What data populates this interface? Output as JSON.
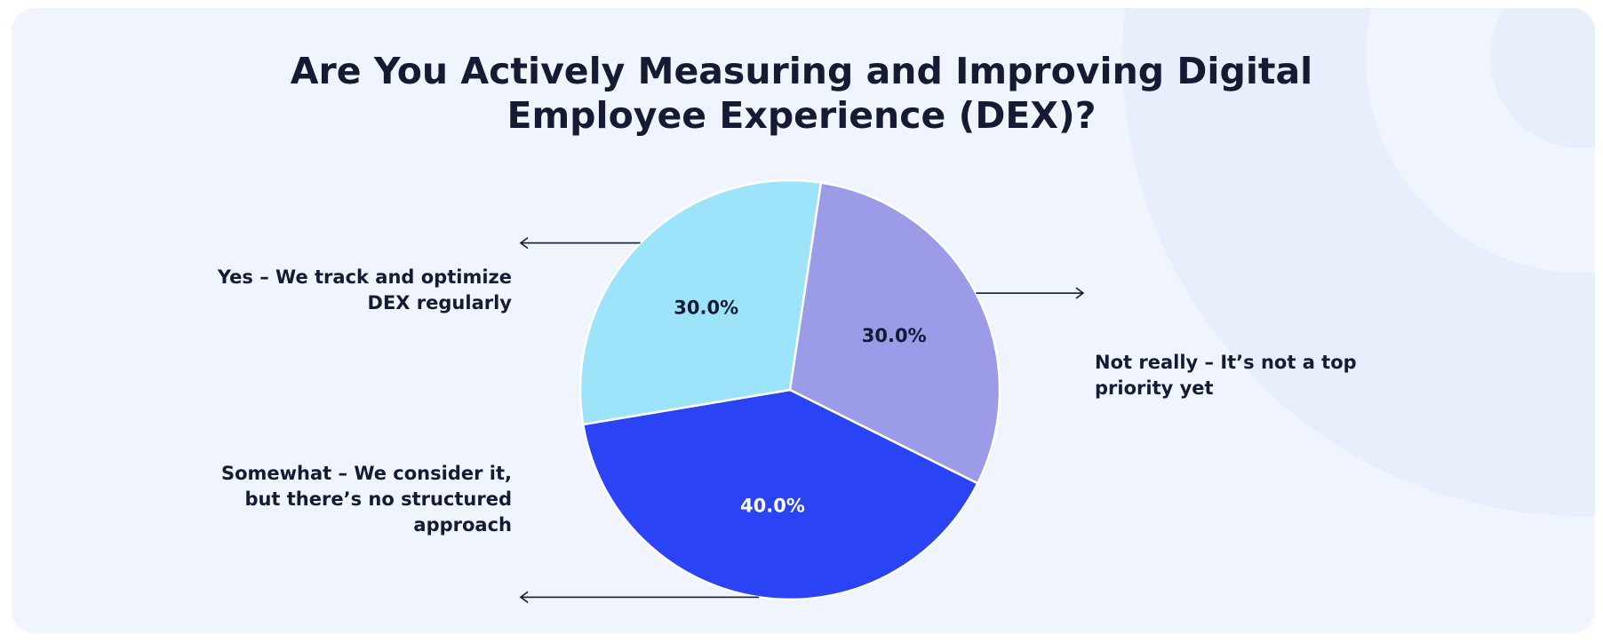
{
  "chart_data": {
    "type": "pie",
    "title": "Are You Actively Measuring and Improving Digital Employee Experience (DEX)?",
    "title_lines": [
      "Are You Actively Measuring and Improving Digital",
      "Employee Experience (DEX)?"
    ],
    "slices": [
      {
        "label": "Not really – It’s not a top priority yet",
        "label_lines": [
          "Not really – It’s not a top",
          "priority yet"
        ],
        "value": 30.0,
        "display": "30.0%",
        "color": "#9b9be8",
        "label_color": "#141b33"
      },
      {
        "label": "Somewhat – We consider it, but there’s no structured approach",
        "label_lines": [
          "Somewhat – We consider it,",
          "but there’s no structured",
          "approach"
        ],
        "value": 40.0,
        "display": "40.0%",
        "color": "#2a43f5",
        "label_color": "#ffffff"
      },
      {
        "label": "Yes – We track and optimize DEX regularly",
        "label_lines": [
          "Yes – We track and optimize",
          "DEX regularly"
        ],
        "value": 30.0,
        "display": "30.0%",
        "color": "#9de4fa",
        "label_color": "#141b33"
      }
    ],
    "legend": "none"
  }
}
